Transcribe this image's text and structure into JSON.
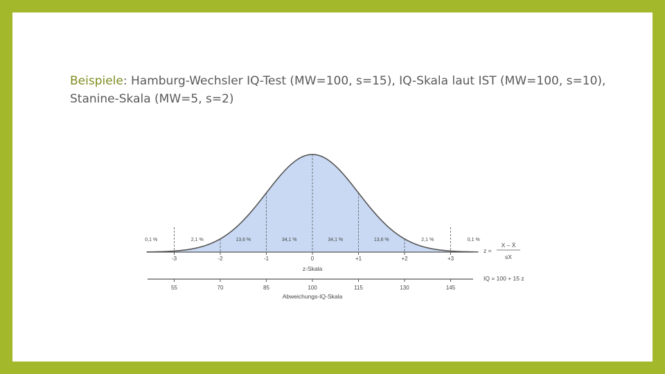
{
  "slide": {
    "text_highlight": "Beispiele",
    "text_rest": ": Hamburg-Wechsler IQ-Test (MW=100, s=15), IQ-Skala laut IST (MW=100, s=10), Stanine-Skala (MW=5, s=2)"
  },
  "chart_data": {
    "type": "area",
    "description_type": "normal distribution",
    "z_ticks": [
      "-3",
      "-2",
      "-1",
      "0",
      "+1",
      "+2",
      "+3"
    ],
    "z_values": [
      -3,
      -2,
      -1,
      0,
      1,
      2,
      3
    ],
    "percent_labels": [
      "0,1 %",
      "2,1 %",
      "13,6 %",
      "34,1 %",
      "34,1 %",
      "13,6 %",
      "2,1 %",
      "0,1 %"
    ],
    "z_axis_label": "z-Skala",
    "iq_ticks": [
      "55",
      "70",
      "85",
      "100",
      "115",
      "130",
      "145"
    ],
    "iq_axis_label": "Abweichungs-IQ-Skala",
    "formula_z_left": "z =",
    "formula_z_num": "X – X̄",
    "formula_z_den": "sX",
    "formula_iq": "IQ = 100 + 15 z",
    "colors": {
      "fill": "#c9d9f3",
      "stroke": "#555555",
      "accent": "#a3b82a"
    }
  }
}
